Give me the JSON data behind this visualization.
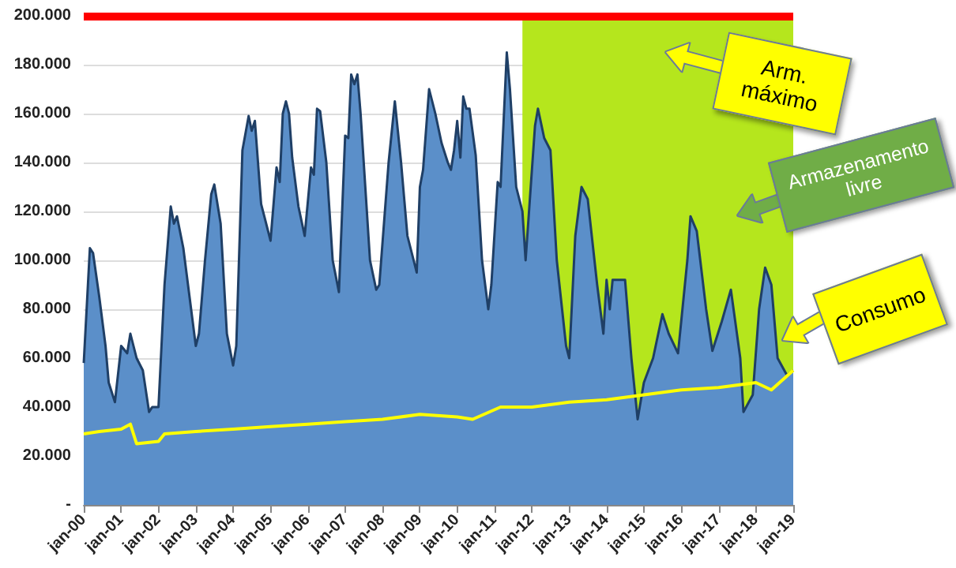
{
  "chart_data": {
    "type": "area",
    "grid": "y",
    "marker": "none",
    "xlim": [
      "2000-01",
      "2019-01"
    ],
    "xticks": [
      {
        "value": "2000-01",
        "label": "jan-00"
      },
      {
        "value": "2001-01",
        "label": "jan-01"
      },
      {
        "value": "2002-01",
        "label": "jan-02"
      },
      {
        "value": "2003-01",
        "label": "jan-03"
      },
      {
        "value": "2004-01",
        "label": "jan-04"
      },
      {
        "value": "2005-01",
        "label": "jan-05"
      },
      {
        "value": "2006-01",
        "label": "jan-06"
      },
      {
        "value": "2007-01",
        "label": "jan-07"
      },
      {
        "value": "2008-01",
        "label": "jan-08"
      },
      {
        "value": "2009-01",
        "label": "jan-09"
      },
      {
        "value": "2010-01",
        "label": "jan-10"
      },
      {
        "value": "2011-01",
        "label": "jan-11"
      },
      {
        "value": "2012-01",
        "label": "jan-12"
      },
      {
        "value": "2013-01",
        "label": "jan-13"
      },
      {
        "value": "2014-01",
        "label": "jan-14"
      },
      {
        "value": "2015-01",
        "label": "jan-15"
      },
      {
        "value": "2016-01",
        "label": "jan-16"
      },
      {
        "value": "2017-01",
        "label": "jan-17"
      },
      {
        "value": "2018-01",
        "label": "jan-18"
      },
      {
        "value": "2019-01",
        "label": "jan-19"
      }
    ],
    "ylim": [
      0,
      200000
    ],
    "yticks": [
      {
        "value": 0,
        "label": "-"
      },
      {
        "value": 20000,
        "label": "20.000"
      },
      {
        "value": 40000,
        "label": "40.000"
      },
      {
        "value": 60000,
        "label": "60.000"
      },
      {
        "value": 80000,
        "label": "80.000"
      },
      {
        "value": 100000,
        "label": "100.000"
      },
      {
        "value": 120000,
        "label": "120.000"
      },
      {
        "value": 140000,
        "label": "140.000"
      },
      {
        "value": 160000,
        "label": "160.000"
      },
      {
        "value": 180000,
        "label": "180.000"
      },
      {
        "value": 200000,
        "label": "200.000"
      }
    ],
    "bands": [
      {
        "axis": "x",
        "from": "2011-10",
        "to": "2019-01",
        "color": "#b5e61d"
      }
    ],
    "ref_lines": [
      {
        "axis": "y",
        "value": 200000,
        "color": "#ff0000"
      }
    ],
    "annotations": [
      "Arm. máximo",
      "Armazenamento livre",
      "Consumo"
    ],
    "series": [
      {
        "color": "#5b8fc9",
        "x": [
          "2000-01",
          "2000-03",
          "2000-04",
          "2000-06",
          "2000-08",
          "2000-09",
          "2000-11",
          "2001-01",
          "2001-03",
          "2001-04",
          "2001-06",
          "2001-08",
          "2001-10",
          "2001-11",
          "2002-01",
          "2002-03",
          "2002-05",
          "2002-06",
          "2002-07",
          "2002-09",
          "2002-11",
          "2003-01",
          "2003-02",
          "2003-04",
          "2003-06",
          "2003-07",
          "2003-09",
          "2003-11",
          "2004-01",
          "2004-02",
          "2004-04",
          "2004-06",
          "2004-07",
          "2004-08",
          "2004-10",
          "2004-11",
          "2005-01",
          "2005-03",
          "2005-04",
          "2005-05",
          "2005-06",
          "2005-07",
          "2005-08",
          "2005-10",
          "2005-12",
          "2006-02",
          "2006-03",
          "2006-04",
          "2006-05",
          "2006-07",
          "2006-09",
          "2006-11",
          "2007-01",
          "2007-02",
          "2007-03",
          "2007-04",
          "2007-05",
          "2007-06",
          "2007-09",
          "2007-11",
          "2007-12",
          "2008-03",
          "2008-05",
          "2008-07",
          "2008-09",
          "2008-11",
          "2008-12",
          "2009-01",
          "2009-02",
          "2009-04",
          "2009-06",
          "2009-08",
          "2009-10",
          "2009-11",
          "2009-12",
          "2010-01",
          "2010-02",
          "2010-03",
          "2010-04",
          "2010-05",
          "2010-07",
          "2010-09",
          "2010-11",
          "2010-12",
          "2011-02",
          "2011-03",
          "2011-05",
          "2011-06",
          "2011-08",
          "2011-10",
          "2011-11",
          "2012-02",
          "2012-03",
          "2012-05",
          "2012-07",
          "2012-09",
          "2012-12",
          "2013-01",
          "2013-03",
          "2013-05",
          "2013-07",
          "2013-10",
          "2013-12",
          "2014-01",
          "2014-02",
          "2014-03",
          "2014-07",
          "2014-09",
          "2014-11",
          "2015-01",
          "2015-04",
          "2015-07",
          "2015-09",
          "2015-12",
          "2016-03",
          "2016-04",
          "2016-06",
          "2016-09",
          "2016-11",
          "2017-02",
          "2017-05",
          "2017-08",
          "2017-09",
          "2017-12",
          "2018-02",
          "2018-04",
          "2018-06",
          "2018-08",
          "2018-11",
          "2019-01"
        ],
        "values": [
          58000,
          105000,
          103000,
          85000,
          65000,
          50000,
          42000,
          65000,
          62000,
          70000,
          60000,
          55000,
          38000,
          40000,
          40000,
          90000,
          122000,
          115000,
          118000,
          105000,
          85000,
          65000,
          70000,
          100000,
          127000,
          131000,
          115000,
          70000,
          57000,
          65000,
          145000,
          159000,
          153000,
          157000,
          123000,
          118000,
          108000,
          138000,
          132000,
          160000,
          165000,
          160000,
          142000,
          122000,
          110000,
          138000,
          135000,
          162000,
          161000,
          140000,
          100000,
          87000,
          151000,
          150000,
          176000,
          172000,
          176000,
          160000,
          100000,
          88000,
          90000,
          140000,
          165000,
          140000,
          110000,
          100000,
          95000,
          130000,
          137000,
          170000,
          160000,
          148000,
          140000,
          137000,
          145000,
          157000,
          142000,
          167000,
          162000,
          162000,
          143000,
          100000,
          80000,
          90000,
          132000,
          130000,
          185000,
          170000,
          130000,
          120000,
          100000,
          155000,
          162000,
          150000,
          145000,
          100000,
          65000,
          60000,
          110000,
          130000,
          125000,
          90000,
          70000,
          92000,
          80000,
          92000,
          92000,
          60000,
          35000,
          50000,
          60000,
          78000,
          70000,
          62000,
          100000,
          118000,
          112000,
          80000,
          63000,
          75000,
          88000,
          60000,
          38000,
          45000,
          80000,
          97000,
          90000,
          60000,
          53000,
          55000
        ]
      },
      {
        "type": "line",
        "color": "#ffff00",
        "x": [
          "2000-01",
          "2000-06",
          "2001-01",
          "2001-04",
          "2001-06",
          "2002-01",
          "2002-03",
          "2003-01",
          "2004-01",
          "2005-01",
          "2006-01",
          "2007-01",
          "2008-01",
          "2009-01",
          "2010-01",
          "2010-06",
          "2011-03",
          "2012-01",
          "2013-01",
          "2014-01",
          "2015-01",
          "2016-01",
          "2017-01",
          "2018-01",
          "2018-06",
          "2019-01"
        ],
        "values": [
          29000,
          30000,
          31000,
          33000,
          25000,
          26000,
          29000,
          30000,
          31000,
          32000,
          33000,
          34000,
          35000,
          37000,
          36000,
          35000,
          40000,
          40000,
          42000,
          43000,
          45000,
          47000,
          48000,
          50000,
          47000,
          55000
        ]
      }
    ]
  }
}
